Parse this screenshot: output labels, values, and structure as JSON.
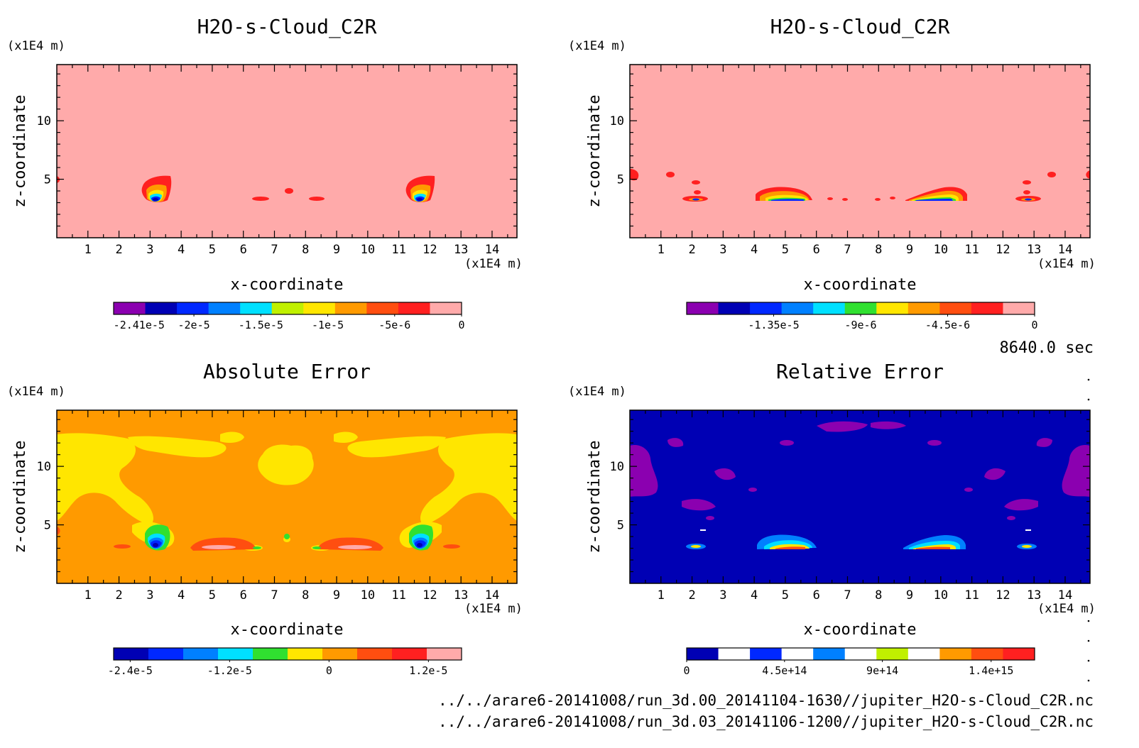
{
  "timestamp": "8640.0 sec",
  "source_files": [
    "../../arare6-20141008/run_3d.00_20141104-1630//jupiter_H2O-s-Cloud_C2R.nc",
    "../../arare6-20141008/run_3d.03_20141106-1200//jupiter_H2O-s-Cloud_C2R.nc"
  ],
  "colors": {
    "purple": "#8b00b0",
    "navy": "#0000b4",
    "blue": "#0028ff",
    "lightblue": "#0080ff",
    "cyan": "#00e0ff",
    "green": "#30e030",
    "yellowgreen": "#c0f000",
    "yellow": "#ffe600",
    "orange": "#ff9a00",
    "redorange": "#ff4e10",
    "red": "#ff2020",
    "pink": "#ffaaaa"
  },
  "chart_data": [
    {
      "type": "heatmap",
      "title": "H2O-s-Cloud_C2R",
      "xlabel": "x-coordinate",
      "ylabel": "z-coordinate",
      "x_unit": "(x1E4 m)",
      "y_unit": "(x1E4 m)",
      "xlim": [
        0,
        14.8
      ],
      "ylim": [
        0,
        14.8
      ],
      "x_ticks": [
        "1",
        "2",
        "3",
        "4",
        "5",
        "6",
        "7",
        "8",
        "9",
        "10",
        "11",
        "12",
        "13",
        "14"
      ],
      "y_ticks": [
        "5",
        "10"
      ],
      "background_level": "0",
      "features": [
        {
          "x": 3.2,
          "z": 3.8,
          "kind": "plume"
        },
        {
          "x": 11.8,
          "z": 3.8,
          "kind": "plume"
        },
        {
          "x": 6.7,
          "z": 3.4,
          "kind": "spot"
        },
        {
          "x": 7.6,
          "z": 4.0,
          "kind": "spot"
        },
        {
          "x": 8.5,
          "z": 3.4,
          "kind": "spot"
        }
      ],
      "colorbar": {
        "colors": [
          "#8b00b0",
          "#0000b4",
          "#0028ff",
          "#0080ff",
          "#00e0ff",
          "#c0f000",
          "#ffe600",
          "#ff9a00",
          "#ff4e10",
          "#ff2020",
          "#ffaaaa"
        ],
        "labels": [
          "-2.41e-5",
          "-2e-5",
          "-1.5e-5",
          "-1e-5",
          "-5e-6",
          "0"
        ]
      }
    },
    {
      "type": "heatmap",
      "title": "H2O-s-Cloud_C2R",
      "xlabel": "x-coordinate",
      "ylabel": "z-coordinate",
      "x_unit": "(x1E4 m)",
      "y_unit": "(x1E4 m)",
      "xlim": [
        0,
        14.8
      ],
      "ylim": [
        0,
        14.8
      ],
      "x_ticks": [
        "1",
        "2",
        "3",
        "4",
        "5",
        "6",
        "7",
        "8",
        "9",
        "10",
        "11",
        "12",
        "13",
        "14"
      ],
      "y_ticks": [
        "5",
        "10"
      ],
      "background_level": "0",
      "features": [
        {
          "x": 2.2,
          "z": 3.4,
          "kind": "spot"
        },
        {
          "x": 5.4,
          "z": 3.6,
          "kind": "band"
        },
        {
          "x": 9.8,
          "z": 3.6,
          "kind": "band"
        },
        {
          "x": 13.0,
          "z": 3.4,
          "kind": "spot"
        }
      ],
      "colorbar": {
        "colors": [
          "#8b00b0",
          "#0000b4",
          "#0028ff",
          "#0080ff",
          "#00e0ff",
          "#30e030",
          "#ffe600",
          "#ff9a00",
          "#ff4e10",
          "#ff2020",
          "#ffaaaa"
        ],
        "labels": [
          "-1.35e-5",
          "-9e-6",
          "-4.5e-6",
          "0"
        ]
      }
    },
    {
      "type": "heatmap",
      "title": "Absolute Error",
      "xlabel": "x-coordinate",
      "ylabel": "z-coordinate",
      "x_unit": "(x1E4 m)",
      "y_unit": "(x1E4 m)",
      "xlim": [
        0,
        14.8
      ],
      "ylim": [
        0,
        14.8
      ],
      "x_ticks": [
        "1",
        "2",
        "3",
        "4",
        "5",
        "6",
        "7",
        "8",
        "9",
        "10",
        "11",
        "12",
        "13",
        "14"
      ],
      "y_ticks": [
        "5",
        "10"
      ],
      "background_level": "0",
      "colorbar": {
        "colors": [
          "#0000b4",
          "#0028ff",
          "#0080ff",
          "#00e0ff",
          "#30e030",
          "#ffe600",
          "#ff9a00",
          "#ff4e10",
          "#ff2020",
          "#ffaaaa"
        ],
        "labels": [
          "-2.4e-5",
          "-1.2e-5",
          "0",
          "1.2e-5"
        ]
      }
    },
    {
      "type": "heatmap",
      "title": "Relative Error",
      "xlabel": "x-coordinate",
      "ylabel": "z-coordinate",
      "x_unit": "(x1E4 m)",
      "y_unit": "(x1E4 m)",
      "xlim": [
        0,
        14.8
      ],
      "ylim": [
        0,
        14.8
      ],
      "x_ticks": [
        "1",
        "2",
        "3",
        "4",
        "5",
        "6",
        "7",
        "8",
        "9",
        "10",
        "11",
        "12",
        "13",
        "14"
      ],
      "y_ticks": [
        "5",
        "10"
      ],
      "background_level": "0",
      "colorbar": {
        "colors": [
          "#0000b4",
          "#ffffff",
          "#0028ff",
          "#ffffff",
          "#0080ff",
          "#ffffff",
          "#c0f000",
          "#ffffff",
          "#ff9a00",
          "#ff4e10",
          "#ff2020"
        ],
        "labels": [
          "0",
          "4.5e+14",
          "9e+14",
          "1.4e+15"
        ]
      }
    }
  ]
}
